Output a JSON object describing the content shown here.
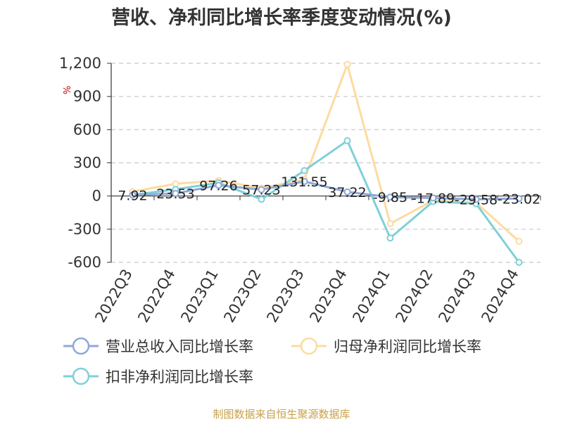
{
  "title": "营收、净利同比增长率季度变动情况(%)",
  "source": "制图数据来自恒生聚源数据库",
  "unit": "%",
  "colors": {
    "revenue": "#8fa8d8",
    "net_profit": "#fddba0",
    "deducted_net_profit": "#7fd0d8",
    "grid": "#c8c8c8",
    "axis": "#333333"
  },
  "chart_data": {
    "type": "line",
    "title": "营收、净利同比增长率季度变动情况(%)",
    "xlabel": "",
    "ylabel": "%",
    "ylim": [
      -600,
      1200
    ],
    "yticks": [
      -600,
      -300,
      0,
      300,
      600,
      900,
      1200
    ],
    "ytick_labels": [
      "-600",
      "-300",
      "0",
      "300",
      "600",
      "900",
      "1,200"
    ],
    "categories": [
      "2022Q3",
      "2022Q4",
      "2023Q1",
      "2023Q2",
      "2023Q3",
      "2023Q4",
      "2024Q1",
      "2024Q2",
      "2024Q3",
      "2024Q4"
    ],
    "series": [
      {
        "name": "营业总收入同比增长率",
        "color_key": "revenue",
        "values": [
          7.92,
          23.53,
          97.26,
          57.23,
          131.55,
          37.22,
          -9.85,
          -17.89,
          -29.58,
          -23.02
        ],
        "labels": [
          "7.92",
          "23.53",
          "97.26",
          "57.23",
          "131.55",
          "37.22",
          "-9.85",
          "-17.89",
          "-29.58",
          "-23.02"
        ]
      },
      {
        "name": "归母净利润同比增长率",
        "color_key": "net_profit",
        "values": [
          40,
          110,
          140,
          70,
          150,
          1190,
          -250,
          -40,
          -60,
          -410
        ]
      },
      {
        "name": "扣非净利润同比增长率",
        "color_key": "deducted_net_profit",
        "values": [
          10,
          60,
          120,
          -30,
          230,
          500,
          -380,
          -50,
          -70,
          -600
        ]
      }
    ],
    "legend_position": "bottom",
    "grid": true
  }
}
